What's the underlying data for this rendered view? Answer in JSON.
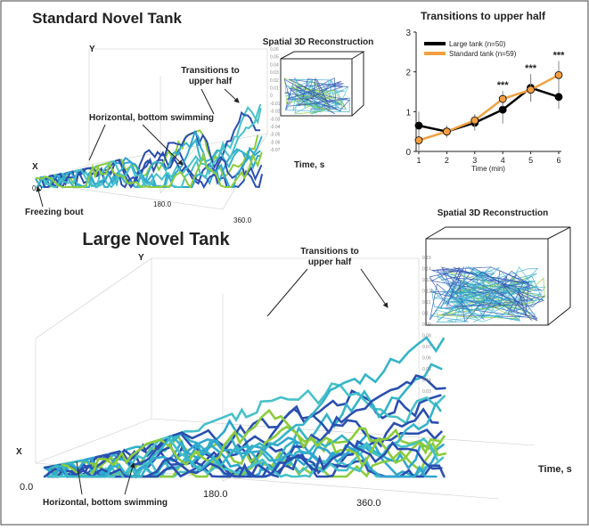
{
  "panels": {
    "standard": {
      "title": "Standard Novel Tank",
      "inset_title": "Spatial 3D Reconstruction",
      "transitions_label": [
        "Transitions to",
        "upper half"
      ],
      "bottom_label": "Horizontal, bottom swimming",
      "freezing_label": "Freezing bout",
      "y_axis": "Y",
      "x_axis": "X",
      "time_axis": "Time, s",
      "time_ticks": [
        "0.0",
        "180.0",
        "360.0"
      ],
      "y_tick_labels": [
        "0.06",
        "0.05",
        "0.04",
        "0.03",
        "0.02",
        "0.01",
        "0",
        "-0.01",
        "-0.02",
        "-0.03",
        "-0.04",
        "-0.05",
        "-0.06",
        "-0.07"
      ]
    },
    "large": {
      "title": "Large Novel Tank",
      "inset_title": "Spatial 3D Reconstruction",
      "transitions_label": [
        "Transitions to",
        "upper half"
      ],
      "bottom_label": "Horizontal, bottom swimming",
      "y_axis": "Y",
      "x_axis": "X",
      "time_axis": "Time, s",
      "time_ticks": [
        "0.0",
        "180.0",
        "360.0"
      ],
      "y_tick_labels": [
        "0.15",
        "0.14",
        "0.13",
        "0.12",
        "0.11",
        "0.1",
        "0.09",
        "0.08",
        "0.07",
        "0.06",
        "0.05",
        "0.04",
        "0.03"
      ]
    }
  },
  "chart_data": {
    "type": "line",
    "title": "Transitions to upper half",
    "x_label": "Time (min)",
    "x": [
      1,
      2,
      3,
      4,
      5,
      6
    ],
    "xlim": [
      1,
      6
    ],
    "xticks": [
      1,
      2,
      3,
      4,
      5,
      6
    ],
    "ylim": [
      0,
      3
    ],
    "yticks": [
      0,
      1,
      2,
      3
    ],
    "series": [
      {
        "name": "Large tank (n=50)",
        "color": "#000000",
        "values": [
          0.65,
          0.5,
          0.72,
          1.05,
          1.6,
          1.37
        ],
        "errors": [
          0.35,
          0.15,
          0.2,
          0.35,
          0.35,
          0.3
        ]
      },
      {
        "name": "Standard tank (n=59)",
        "color": "#f2a041",
        "values": [
          0.28,
          0.5,
          0.78,
          1.32,
          1.55,
          1.92
        ],
        "errors": [
          0.25,
          0.15,
          0.15,
          0.2,
          0.3,
          0.35
        ]
      }
    ],
    "annotations": [
      {
        "x": 4,
        "text": "***"
      },
      {
        "x": 5,
        "text": "***"
      },
      {
        "x": 6,
        "text": "***"
      }
    ]
  }
}
